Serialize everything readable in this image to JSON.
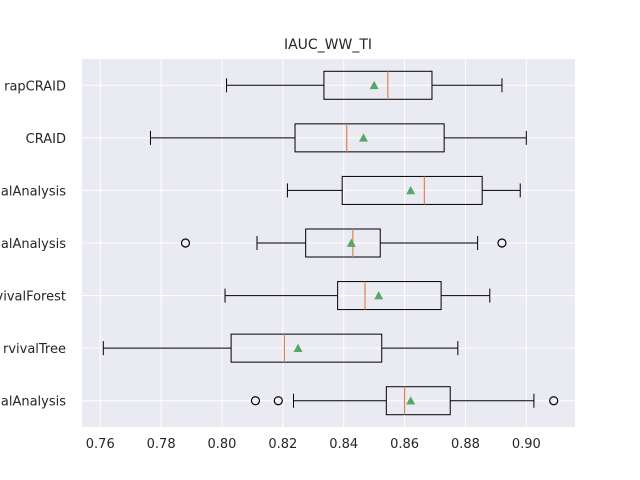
{
  "chart_data": {
    "type": "boxplot",
    "title": "IAUC_WW_TI",
    "xlabel": "",
    "ylabel": "",
    "xlim": [
      0.754,
      0.916
    ],
    "xticks": [
      0.76,
      0.78,
      0.8,
      0.82,
      0.84,
      0.86,
      0.88,
      0.9
    ],
    "xtick_labels": [
      "0.76",
      "0.78",
      "0.80",
      "0.82",
      "0.84",
      "0.86",
      "0.88",
      "0.90"
    ],
    "grid": true,
    "categories_visible": [
      "rapCRAID",
      "CRAID",
      "alAnalysis",
      "alAnalysis",
      "vivalForest",
      "rvivalTree",
      "alAnalysis"
    ],
    "boxes": [
      {
        "label": "rapCRAID",
        "whisker_low": 0.8015,
        "q1": 0.8335,
        "median": 0.8545,
        "q3": 0.869,
        "whisker_high": 0.892,
        "mean": 0.85,
        "outliers": []
      },
      {
        "label": "CRAID",
        "whisker_low": 0.7765,
        "q1": 0.824,
        "median": 0.841,
        "q3": 0.873,
        "whisker_high": 0.9,
        "mean": 0.8465,
        "outliers": []
      },
      {
        "label": "alAnalysis",
        "whisker_low": 0.8215,
        "q1": 0.8395,
        "median": 0.8665,
        "q3": 0.8855,
        "whisker_high": 0.898,
        "mean": 0.862,
        "outliers": []
      },
      {
        "label": "alAnalysis",
        "whisker_low": 0.8115,
        "q1": 0.8275,
        "median": 0.843,
        "q3": 0.852,
        "whisker_high": 0.884,
        "mean": 0.8425,
        "outliers": [
          0.788,
          0.892
        ]
      },
      {
        "label": "vivalForest",
        "whisker_low": 0.801,
        "q1": 0.838,
        "median": 0.847,
        "q3": 0.872,
        "whisker_high": 0.888,
        "mean": 0.8515,
        "outliers": []
      },
      {
        "label": "rvivalTree",
        "whisker_low": 0.761,
        "q1": 0.803,
        "median": 0.8205,
        "q3": 0.8525,
        "whisker_high": 0.8775,
        "mean": 0.825,
        "outliers": []
      },
      {
        "label": "alAnalysis",
        "whisker_low": 0.8235,
        "q1": 0.854,
        "median": 0.86,
        "q3": 0.875,
        "whisker_high": 0.9025,
        "mean": 0.862,
        "outliers": [
          0.811,
          0.8185,
          0.909
        ]
      }
    ]
  },
  "colors": {
    "plot_background": "#eaeaf2",
    "grid": "#ffffff",
    "box_line": "#000000",
    "median": "#dd8452",
    "mean_marker": "#55a868",
    "text": "#262626"
  }
}
